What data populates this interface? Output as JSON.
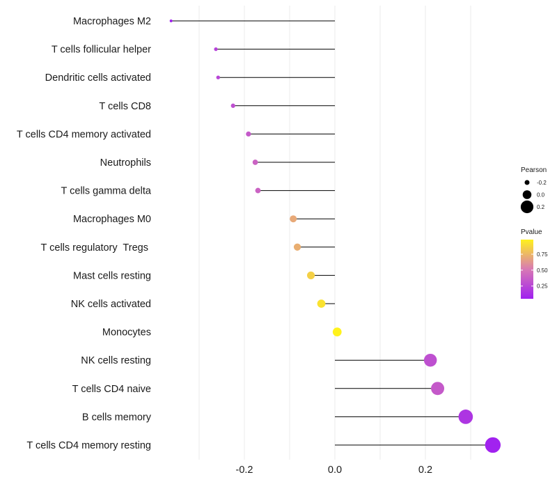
{
  "chart_data": {
    "type": "lollipop",
    "title": "",
    "xlabel": "",
    "ylabel": "",
    "xlim": [
      -0.41,
      0.42
    ],
    "x_ticks": [
      -0.2,
      0.0,
      0.2
    ],
    "x_tick_labels": [
      "-0.2",
      "0.0",
      "0.2"
    ],
    "grid": true,
    "legend_position": "right",
    "categories": [
      "Macrophages M2",
      "T cells follicular helper",
      "Dendritic cells activated",
      "T cells CD8",
      "T cells CD4 memory activated",
      "Neutrophils",
      "T cells gamma delta",
      "Macrophages M0",
      "T cells regulatory  Tregs ",
      "Mast cells resting",
      "NK cells activated",
      "Monocytes",
      "NK cells resting",
      "T cells CD4 naive",
      "B cells memory",
      "T cells CD4 memory resting"
    ],
    "values": [
      -0.362,
      -0.263,
      -0.258,
      -0.225,
      -0.191,
      -0.176,
      -0.17,
      -0.092,
      -0.083,
      -0.053,
      -0.03,
      0.005,
      0.211,
      0.227,
      0.289,
      0.349
    ],
    "pvalues": [
      0.02,
      0.23,
      0.25,
      0.3,
      0.35,
      0.4,
      0.4,
      0.7,
      0.72,
      0.85,
      0.92,
      0.99,
      0.3,
      0.35,
      0.16,
      0.06
    ],
    "size_legend": {
      "title": "Pearson",
      "values": [
        -0.2,
        0.0,
        0.2
      ],
      "labels": [
        "-0.2",
        "0.0",
        "0.2"
      ]
    },
    "color_legend": {
      "title": "Pvalue",
      "range": [
        0.05,
        0.98
      ],
      "ticks": [
        0.25,
        0.5,
        0.75
      ],
      "tick_labels": [
        "0.25",
        "0.50",
        "0.75"
      ],
      "low_color": "#a020f0",
      "mid_color": "#d879b4",
      "high_color": "#fff21c"
    },
    "line_color": "#000000",
    "grid_color": "#ebebeb"
  }
}
